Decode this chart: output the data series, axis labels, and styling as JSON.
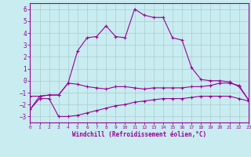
{
  "xlabel": "Windchill (Refroidissement éolien,°C)",
  "xlim": [
    0,
    23
  ],
  "ylim": [
    -3.5,
    6.5
  ],
  "yticks": [
    -3,
    -2,
    -1,
    0,
    1,
    2,
    3,
    4,
    5,
    6
  ],
  "xticks": [
    0,
    1,
    2,
    3,
    4,
    5,
    6,
    7,
    8,
    9,
    10,
    11,
    12,
    13,
    14,
    15,
    16,
    17,
    18,
    19,
    20,
    21,
    22,
    23
  ],
  "background_color": "#c8ecf0",
  "line_color": "#990099",
  "grid_color": "#aaccd0",
  "curve1_x": [
    0,
    1,
    2,
    3,
    4,
    5,
    6,
    7,
    8,
    9,
    10,
    11,
    12,
    13,
    14,
    15,
    16,
    17,
    18,
    19,
    20,
    21,
    22,
    23
  ],
  "curve1_y": [
    -2.4,
    -1.3,
    -1.2,
    -1.2,
    -0.2,
    2.5,
    3.6,
    3.7,
    4.6,
    3.7,
    3.6,
    6.0,
    5.5,
    5.3,
    5.3,
    3.6,
    3.4,
    1.1,
    0.1,
    0.0,
    0.0,
    -0.1,
    -0.5,
    -1.6
  ],
  "curve2_x": [
    0,
    1,
    2,
    3,
    4,
    5,
    6,
    7,
    8,
    9,
    10,
    11,
    12,
    13,
    14,
    15,
    16,
    17,
    18,
    19,
    20,
    21,
    22,
    23
  ],
  "curve2_y": [
    -1.3,
    -1.3,
    -1.2,
    -1.2,
    -0.2,
    -0.3,
    -0.5,
    -0.6,
    -0.7,
    -0.5,
    -0.5,
    -0.6,
    -0.7,
    -0.6,
    -0.6,
    -0.6,
    -0.6,
    -0.5,
    -0.5,
    -0.4,
    -0.2,
    -0.2,
    -0.4,
    -1.6
  ],
  "curve3_x": [
    0,
    1,
    2,
    3,
    4,
    5,
    6,
    7,
    8,
    9,
    10,
    11,
    12,
    13,
    14,
    15,
    16,
    17,
    18,
    19,
    20,
    21,
    22,
    23
  ],
  "curve3_y": [
    -2.4,
    -1.5,
    -1.5,
    -3.0,
    -3.0,
    -2.9,
    -2.7,
    -2.5,
    -2.3,
    -2.1,
    -2.0,
    -1.8,
    -1.7,
    -1.6,
    -1.5,
    -1.5,
    -1.5,
    -1.4,
    -1.3,
    -1.3,
    -1.3,
    -1.3,
    -1.5,
    -1.7
  ]
}
